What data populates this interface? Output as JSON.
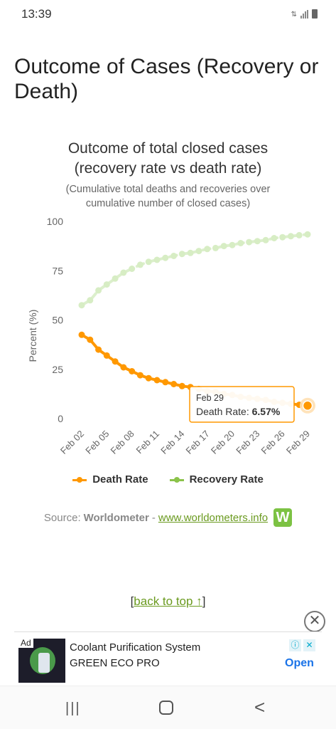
{
  "status_bar": {
    "time": "13:39",
    "icons": [
      "data-transfer-icon",
      "signal-icon",
      "battery-icon"
    ]
  },
  "page": {
    "title": "Outcome of Cases (Recovery or Death)"
  },
  "chart_data": {
    "type": "line",
    "title_line1": "Outcome of total closed cases",
    "title_line2": "(recovery rate vs death rate)",
    "subtitle": "(Cumulative total deaths and recoveries over cumulative number of closed cases)",
    "ylabel": "Percent (%)",
    "xlabel": "",
    "ylim": [
      0,
      100
    ],
    "yticks": [
      "0",
      "25",
      "50",
      "75",
      "100"
    ],
    "grid": false,
    "legend_position": "bottom",
    "x": [
      "Feb 02",
      "Feb 03",
      "Feb 04",
      "Feb 05",
      "Feb 06",
      "Feb 07",
      "Feb 08",
      "Feb 09",
      "Feb 10",
      "Feb 11",
      "Feb 12",
      "Feb 13",
      "Feb 14",
      "Feb 15",
      "Feb 16",
      "Feb 17",
      "Feb 18",
      "Feb 19",
      "Feb 20",
      "Feb 21",
      "Feb 22",
      "Feb 23",
      "Feb 24",
      "Feb 25",
      "Feb 26",
      "Feb 27",
      "Feb 28",
      "Feb 29"
    ],
    "xtick_labels": [
      "Feb 02",
      "Feb 05",
      "Feb 08",
      "Feb 11",
      "Feb 14",
      "Feb 17",
      "Feb 20",
      "Feb 23",
      "Feb 26",
      "Feb 29"
    ],
    "series": [
      {
        "name": "Death Rate",
        "color": "#ff9800",
        "values": [
          42.5,
          40,
          35,
          32,
          29,
          26,
          24,
          22,
          20.5,
          19.5,
          18.5,
          17.5,
          16.5,
          16,
          15,
          14,
          13.5,
          12.5,
          12,
          11,
          10.5,
          10,
          9.5,
          8.5,
          8,
          7.5,
          7,
          6.57
        ]
      },
      {
        "name": "Recovery Rate",
        "color": "#c9e8b0",
        "values": [
          57.5,
          60,
          65,
          68,
          71,
          74,
          76,
          78,
          79.5,
          80.5,
          81.5,
          82.5,
          83.5,
          84,
          85,
          86,
          86.5,
          87.5,
          88,
          89,
          89.5,
          90,
          90.5,
          91.5,
          92,
          92.5,
          93,
          93.43
        ]
      }
    ],
    "tooltip": {
      "date": "Feb 29",
      "label": "Death Rate:",
      "value": "6.57%"
    }
  },
  "source": {
    "prefix": "Source:",
    "name": "Worldometer",
    "separator": "-",
    "link": "www.worldometers.info",
    "logo_letter": "W"
  },
  "back_to_top": {
    "open": "[",
    "label": "back to top ↑",
    "close": "]"
  },
  "ad": {
    "close_symbol": "✕",
    "badge": "Ad",
    "title": "Coolant Purification System",
    "subtitle": "GREEN ECO PRO",
    "info_symbol": "ⓘ",
    "x_symbol": "✕",
    "cta": "Open"
  },
  "nav": {
    "recent_symbol": "|||",
    "back_symbol": "<"
  }
}
